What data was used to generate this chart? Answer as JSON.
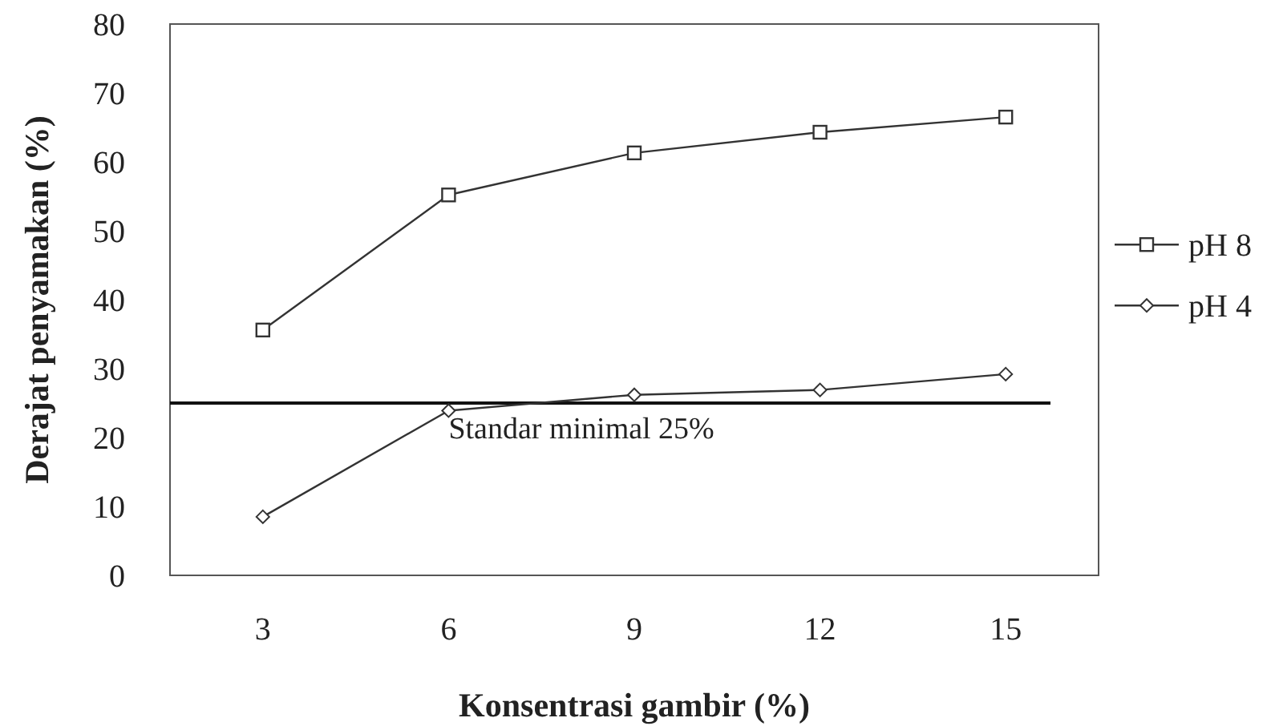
{
  "chart_data": {
    "type": "line",
    "xlabel": "Konsentrasi gambir (%)",
    "ylabel": "Derajat penyamakan (%)",
    "categories": [
      "3",
      "6",
      "9",
      "12",
      "15"
    ],
    "series": [
      {
        "name": "pH 8",
        "color": "#333333",
        "marker": "square",
        "values": [
          35.6,
          55.2,
          61.3,
          64.3,
          66.5
        ]
      },
      {
        "name": "pH 4",
        "color": "#333333",
        "marker": "diamond",
        "values": [
          8.5,
          23.9,
          26.2,
          26.9,
          29.2
        ]
      }
    ],
    "ylim": [
      0,
      80
    ],
    "yticks": [
      0,
      10,
      20,
      30,
      40,
      50,
      60,
      70,
      80
    ],
    "ref_lines": [
      {
        "axis": "y",
        "value": 25,
        "label": "Standar minimal 25%",
        "color": "#111111"
      }
    ],
    "grid": false,
    "legend": "right",
    "line_style": "solid"
  }
}
